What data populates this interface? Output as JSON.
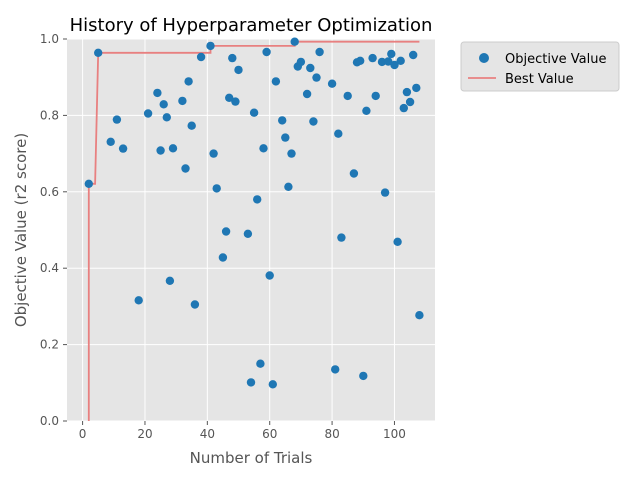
{
  "chart_data": {
    "type": "scatter",
    "title": "History of Hyperparameter Optimization",
    "xlabel": "Number of Trials",
    "ylabel": "Objective Value (r2 score)",
    "xlim": [
      -5,
      113
    ],
    "ylim": [
      0.0,
      1.0
    ],
    "x_ticks": [
      0,
      20,
      40,
      60,
      80,
      100
    ],
    "y_ticks": [
      0.0,
      0.2,
      0.4,
      0.6,
      0.8,
      1.0
    ],
    "x_tick_labels": [
      "0",
      "20",
      "40",
      "60",
      "80",
      "100"
    ],
    "y_tick_labels": [
      "0.0",
      "0.2",
      "0.4",
      "0.6",
      "0.8",
      "1.0"
    ],
    "grid": true,
    "legend_position": "outside-top-right",
    "series": [
      {
        "name": "Objective Value",
        "kind": "scatter",
        "color": "#1f77b4",
        "points": [
          [
            2,
            0.621
          ],
          [
            5,
            0.964
          ],
          [
            9,
            0.731
          ],
          [
            11,
            0.789
          ],
          [
            13,
            0.713
          ],
          [
            18,
            0.316
          ],
          [
            21,
            0.805
          ],
          [
            24,
            0.859
          ],
          [
            25,
            0.708
          ],
          [
            26,
            0.829
          ],
          [
            27,
            0.795
          ],
          [
            28,
            0.367
          ],
          [
            29,
            0.714
          ],
          [
            32,
            0.838
          ],
          [
            33,
            0.661
          ],
          [
            34,
            0.889
          ],
          [
            35,
            0.773
          ],
          [
            36,
            0.305
          ],
          [
            38,
            0.953
          ],
          [
            41,
            0.982
          ],
          [
            42,
            0.7
          ],
          [
            43,
            0.609
          ],
          [
            45,
            0.428
          ],
          [
            46,
            0.496
          ],
          [
            47,
            0.846
          ],
          [
            48,
            0.95
          ],
          [
            49,
            0.836
          ],
          [
            50,
            0.919
          ],
          [
            53,
            0.49
          ],
          [
            54,
            0.101
          ],
          [
            55,
            0.807
          ],
          [
            56,
            0.58
          ],
          [
            57,
            0.15
          ],
          [
            58,
            0.714
          ],
          [
            59,
            0.966
          ],
          [
            60,
            0.381
          ],
          [
            61,
            0.096
          ],
          [
            62,
            0.889
          ],
          [
            64,
            0.787
          ],
          [
            65,
            0.742
          ],
          [
            66,
            0.613
          ],
          [
            67,
            0.7
          ],
          [
            68,
            0.993
          ],
          [
            69,
            0.928
          ],
          [
            70,
            0.94
          ],
          [
            72,
            0.856
          ],
          [
            73,
            0.924
          ],
          [
            74,
            0.784
          ],
          [
            75,
            0.899
          ],
          [
            76,
            0.966
          ],
          [
            80,
            0.883
          ],
          [
            81,
            0.135
          ],
          [
            82,
            0.752
          ],
          [
            83,
            0.48
          ],
          [
            85,
            0.851
          ],
          [
            87,
            0.648
          ],
          [
            88,
            0.939
          ],
          [
            89,
            0.943
          ],
          [
            90,
            0.118
          ],
          [
            91,
            0.812
          ],
          [
            93,
            0.95
          ],
          [
            94,
            0.851
          ],
          [
            96,
            0.94
          ],
          [
            97,
            0.598
          ],
          [
            98,
            0.941
          ],
          [
            99,
            0.961
          ],
          [
            100,
            0.932
          ],
          [
            101,
            0.469
          ],
          [
            102,
            0.943
          ],
          [
            103,
            0.819
          ],
          [
            104,
            0.861
          ],
          [
            105,
            0.835
          ],
          [
            106,
            0.958
          ],
          [
            107,
            0.872
          ],
          [
            108,
            0.277
          ]
        ]
      },
      {
        "name": "Best Value",
        "kind": "step-line",
        "color": "#e88080",
        "points": [
          [
            2,
            0.0
          ],
          [
            2,
            0.621
          ],
          [
            4,
            0.621
          ],
          [
            5,
            0.964
          ],
          [
            41,
            0.964
          ],
          [
            41,
            0.982
          ],
          [
            68,
            0.982
          ],
          [
            68,
            0.993
          ],
          [
            108,
            0.993
          ]
        ]
      }
    ]
  }
}
